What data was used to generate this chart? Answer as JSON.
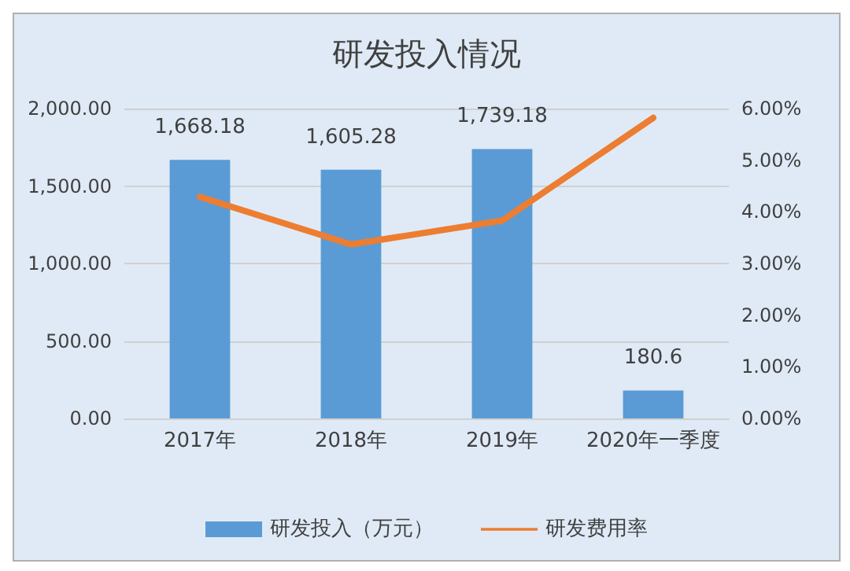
{
  "chart_data": {
    "type": "bar",
    "title": "研发投入情况",
    "categories": [
      "2017年",
      "2018年",
      "2019年",
      "2020年一季度"
    ],
    "series": [
      {
        "name": "研发投入（万元）",
        "color": "#5b9bd5",
        "values": [
          1668.18,
          1605.28,
          1739.18,
          180.6
        ],
        "value_labels": [
          "1,668.18",
          "1,605.28",
          "1,739.18",
          "180.6"
        ]
      },
      {
        "name": "研发费用率",
        "type": "line",
        "axis": "y2",
        "color": "#ed7d31",
        "values": [
          4.29,
          3.37,
          3.83,
          5.82
        ]
      }
    ],
    "ylim": [
      0,
      2000
    ],
    "yticks": [
      {
        "value": 0,
        "label": "0.00"
      },
      {
        "value": 500,
        "label": "500.00"
      },
      {
        "value": 1000,
        "label": "1,000.00"
      },
      {
        "value": 1500,
        "label": "1,500.00"
      },
      {
        "value": 2000,
        "label": "2,000.00"
      }
    ],
    "y2lim": [
      0,
      6
    ],
    "y2ticks": [
      {
        "value": 0,
        "label": "0.00%"
      },
      {
        "value": 1,
        "label": "1.00%"
      },
      {
        "value": 2,
        "label": "2.00%"
      },
      {
        "value": 3,
        "label": "3.00%"
      },
      {
        "value": 4,
        "label": "4.00%"
      },
      {
        "value": 5,
        "label": "5.00%"
      },
      {
        "value": 6,
        "label": "6.00%"
      }
    ],
    "grid": "y",
    "legend": "bottom",
    "marker": "none",
    "line_style": "solid"
  }
}
